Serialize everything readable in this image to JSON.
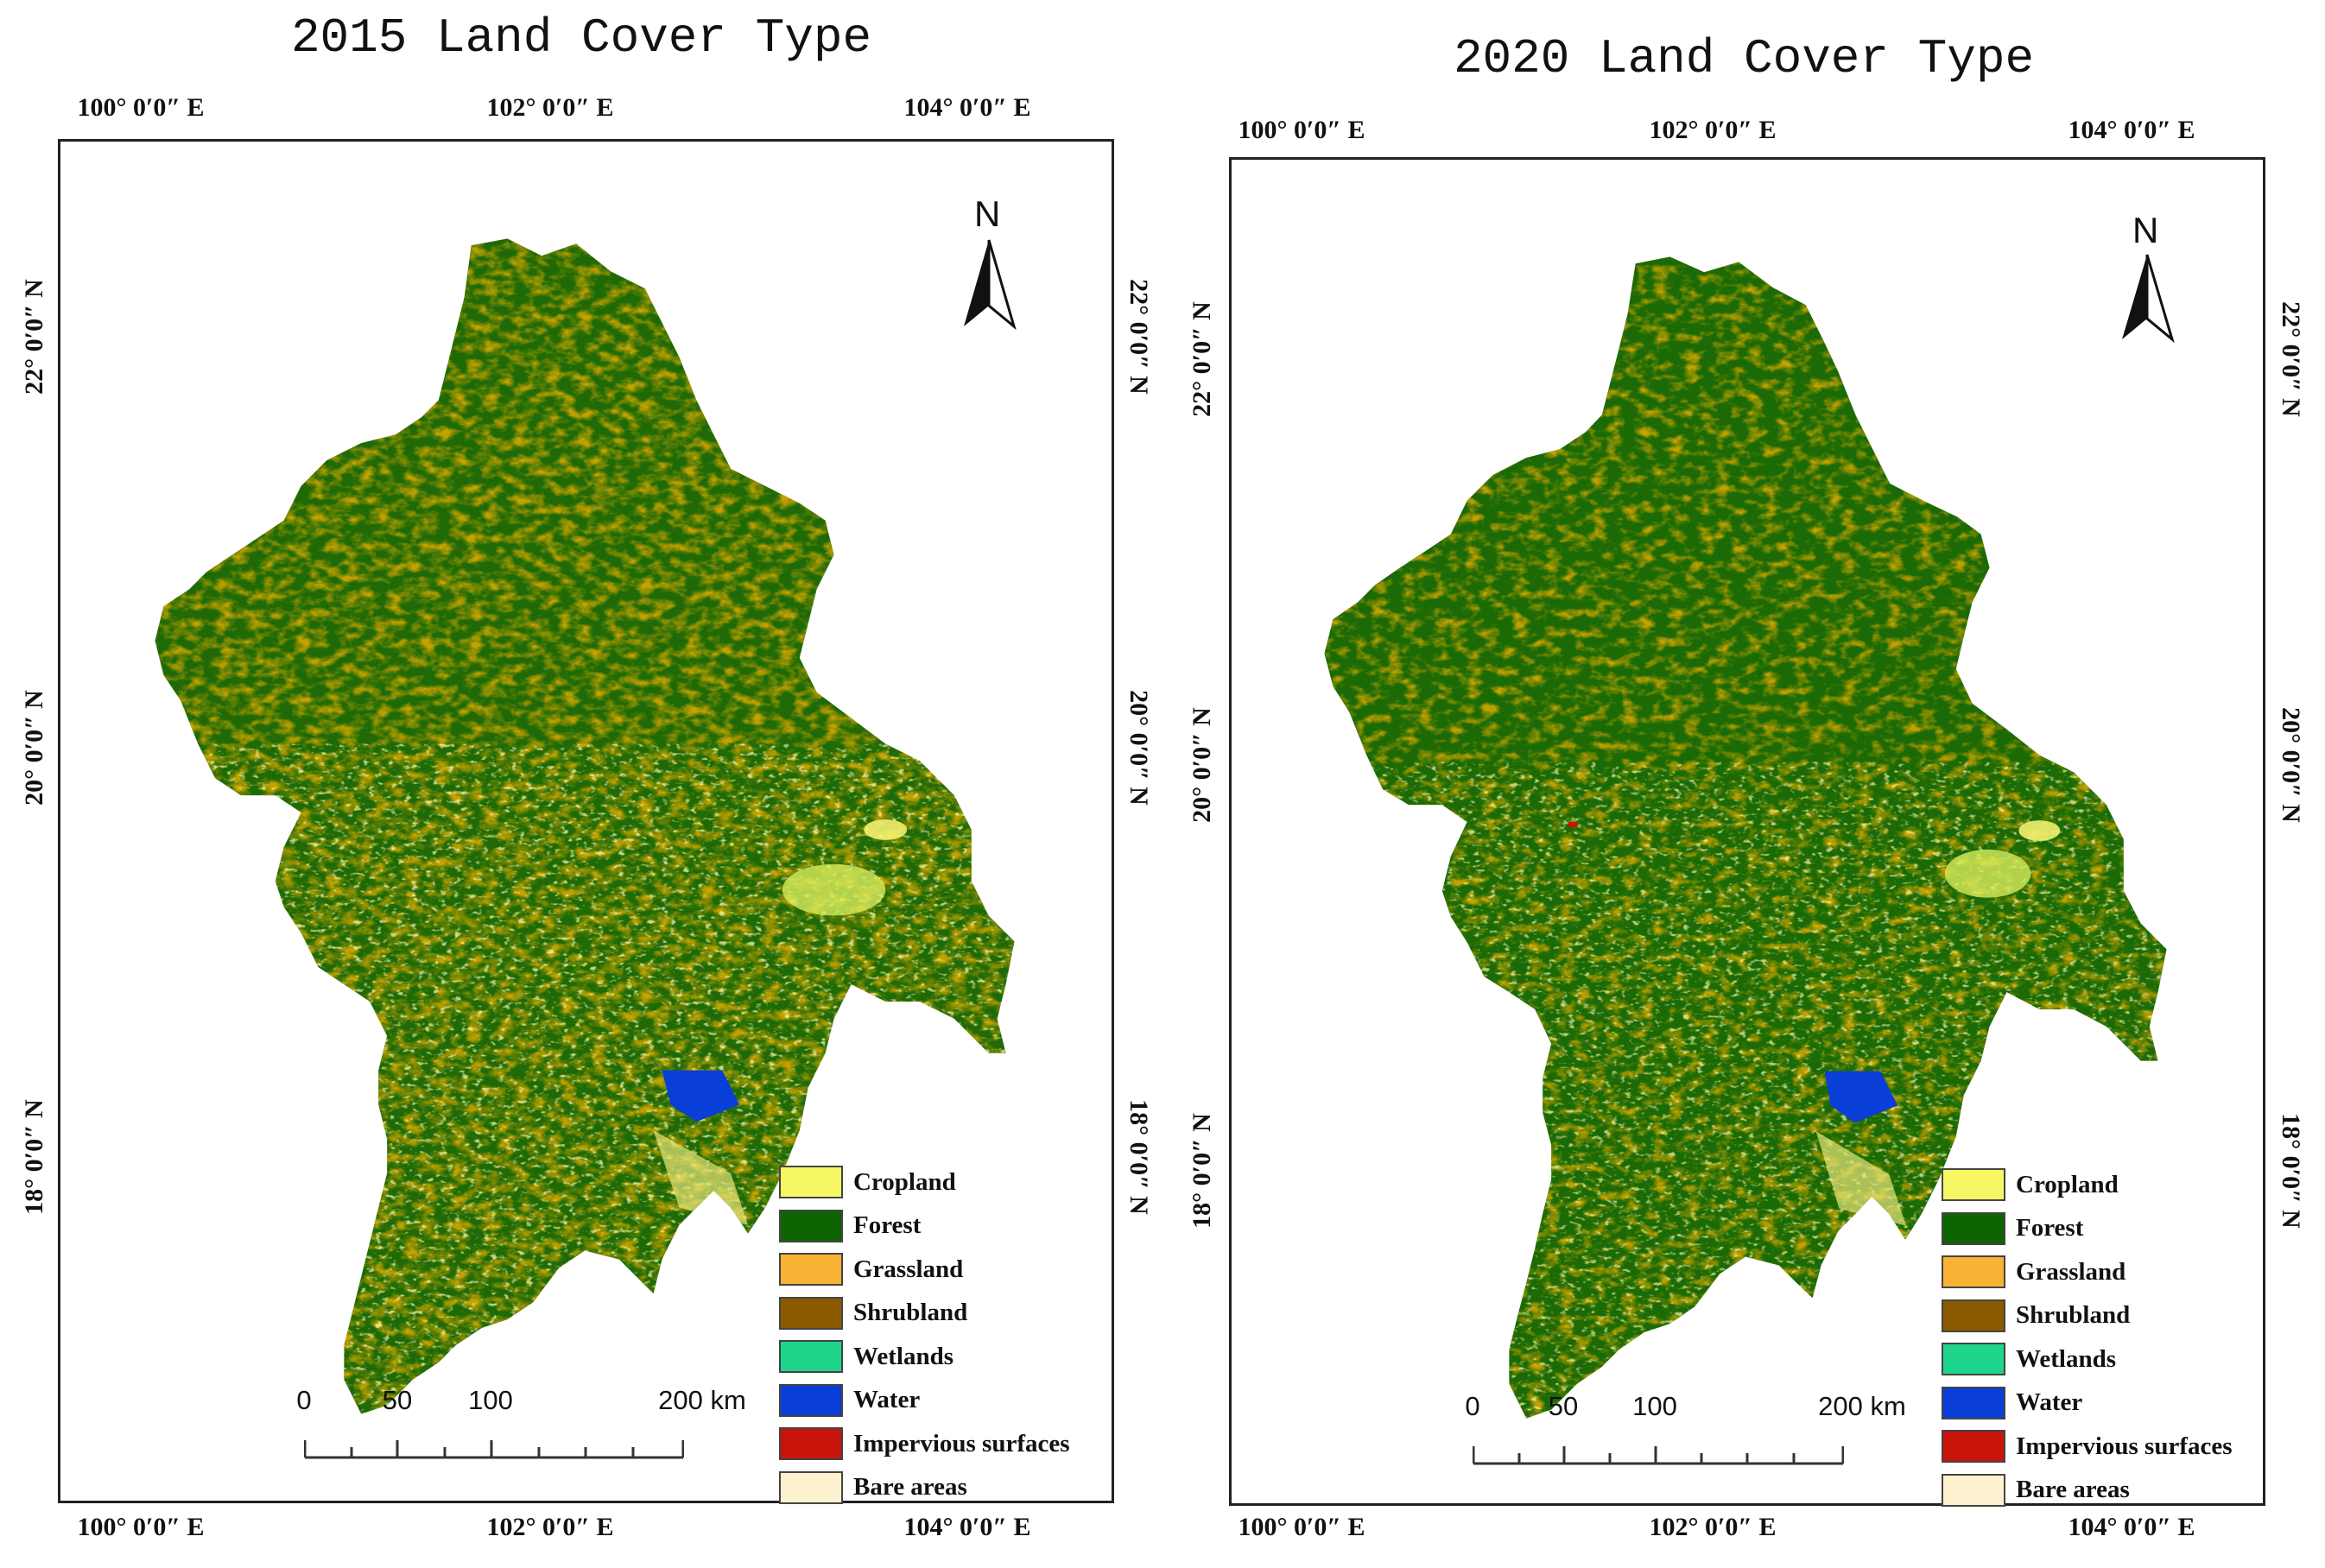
{
  "maps": [
    {
      "title": "2015 Land Cover Type",
      "lon_labels": [
        "100° 0′0″ E",
        "102° 0′0″ E",
        "104° 0′0″ E"
      ],
      "lat_labels": [
        "22° 0′0″ N",
        "20° 0′0″ N",
        "18° 0′0″ N"
      ],
      "north_label": "N",
      "scale": {
        "ticks": [
          "0",
          "50",
          "100",
          "200 km"
        ]
      },
      "legend": [
        {
          "label": "Cropland",
          "color": "#f7f765"
        },
        {
          "label": "Forest",
          "color": "#0d6400"
        },
        {
          "label": "Grassland",
          "color": "#f9b233"
        },
        {
          "label": "Shrubland",
          "color": "#8a5a00"
        },
        {
          "label": "Wetlands",
          "color": "#1fd58c"
        },
        {
          "label": "Water",
          "color": "#0a3ed8"
        },
        {
          "label": "Impervious surfaces",
          "color": "#c8140a"
        },
        {
          "label": "Bare areas",
          "color": "#fdf1cf"
        }
      ]
    },
    {
      "title": "2020 Land Cover Type",
      "lon_labels": [
        "100° 0′0″ E",
        "102° 0′0″ E",
        "104° 0′0″ E"
      ],
      "lat_labels": [
        "22° 0′0″ N",
        "20° 0′0″ N",
        "18° 0′0″ N"
      ],
      "north_label": "N",
      "scale": {
        "ticks": [
          "0",
          "50",
          "100",
          "200 km"
        ]
      },
      "legend": [
        {
          "label": "Cropland",
          "color": "#f7f765"
        },
        {
          "label": "Forest",
          "color": "#0d6400"
        },
        {
          "label": "Grassland",
          "color": "#f9b233"
        },
        {
          "label": "Shrubland",
          "color": "#8a5a00"
        },
        {
          "label": "Wetlands",
          "color": "#1fd58c"
        },
        {
          "label": "Water",
          "color": "#0a3ed8"
        },
        {
          "label": "Impervious surfaces",
          "color": "#c8140a"
        },
        {
          "label": "Bare areas",
          "color": "#fdf1cf"
        }
      ]
    }
  ]
}
